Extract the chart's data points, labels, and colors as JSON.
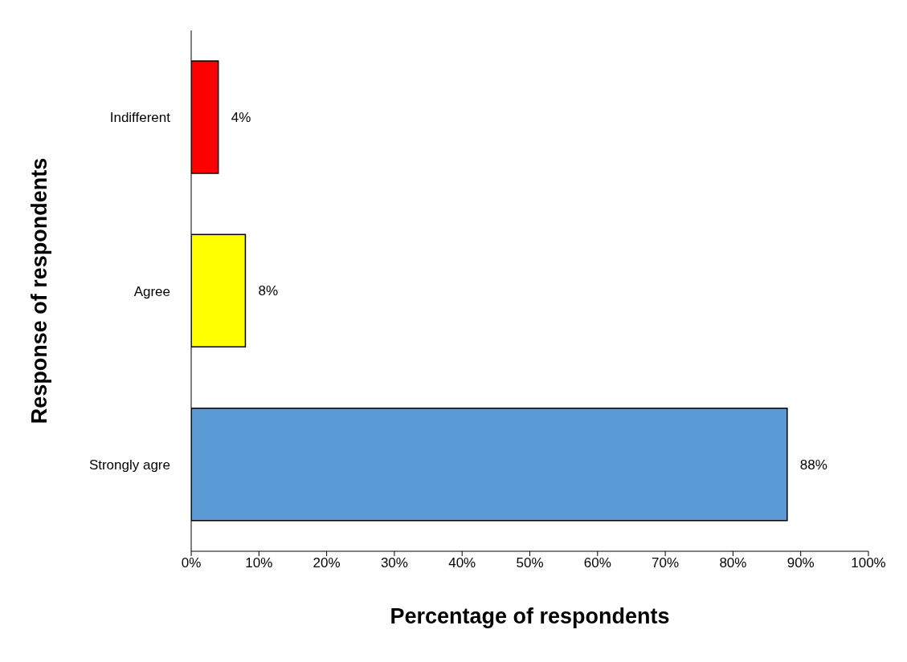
{
  "chart_data": {
    "type": "bar",
    "orientation": "horizontal",
    "xlabel": "Percentage of respondents",
    "ylabel": "Response of respondents",
    "categories": [
      "Indifferent",
      "Agree",
      "Strongly agre"
    ],
    "values": [
      4,
      8,
      88
    ],
    "colors": [
      "#ff0000",
      "#ffff00",
      "#5b9bd5"
    ],
    "value_labels": [
      "4%",
      "8%",
      "88%"
    ],
    "xlim": [
      0,
      100
    ],
    "xticks": [
      {
        "value": 0,
        "label": "0%"
      },
      {
        "value": 10,
        "label": "10%"
      },
      {
        "value": 20,
        "label": "20%"
      },
      {
        "value": 30,
        "label": "30%"
      },
      {
        "value": 40,
        "label": "40%"
      },
      {
        "value": 50,
        "label": "50%"
      },
      {
        "value": 60,
        "label": "60%"
      },
      {
        "value": 70,
        "label": "70%"
      },
      {
        "value": 80,
        "label": "80%"
      },
      {
        "value": 90,
        "label": "90%"
      },
      {
        "value": 100,
        "label": "100%"
      }
    ],
    "grid": false,
    "legend": false
  }
}
